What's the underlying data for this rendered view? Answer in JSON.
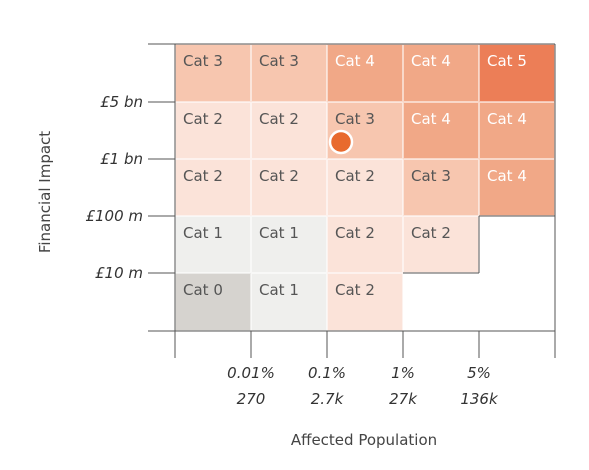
{
  "chart_data": {
    "type": "heatmap",
    "xlabel": "Affected Population",
    "ylabel": "Financial Impact",
    "x_ticks": [
      {
        "percent": "0.01%",
        "count": "270"
      },
      {
        "percent": "0.1%",
        "count": "2.7k"
      },
      {
        "percent": "1%",
        "count": "27k"
      },
      {
        "percent": "5%",
        "count": "136k"
      }
    ],
    "y_ticks": [
      "£5 bn",
      "£1 bn",
      "£100 m",
      "£10 m"
    ],
    "grid": [
      [
        "Cat 3",
        "Cat 3",
        "Cat 4",
        "Cat 4",
        "Cat 5"
      ],
      [
        "Cat 2",
        "Cat 2",
        "Cat 3",
        "Cat 4",
        "Cat 4"
      ],
      [
        "Cat 2",
        "Cat 2",
        "Cat 2",
        "Cat 3",
        "Cat 4"
      ],
      [
        "Cat 1",
        "Cat 1",
        "Cat 2",
        "Cat 2",
        ""
      ],
      [
        "Cat 0",
        "Cat 1",
        "Cat 2",
        "",
        ""
      ]
    ],
    "category_colors": {
      "Cat 0": "#d6d3cf",
      "Cat 1": "#efefed",
      "Cat 2": "#fbe3d9",
      "Cat 3": "#f7c6af",
      "Cat 4": "#f1a887",
      "Cat 5": "#ec7e57"
    },
    "marker": {
      "row": 1,
      "col": 2,
      "color": "#e86a2e"
    }
  }
}
